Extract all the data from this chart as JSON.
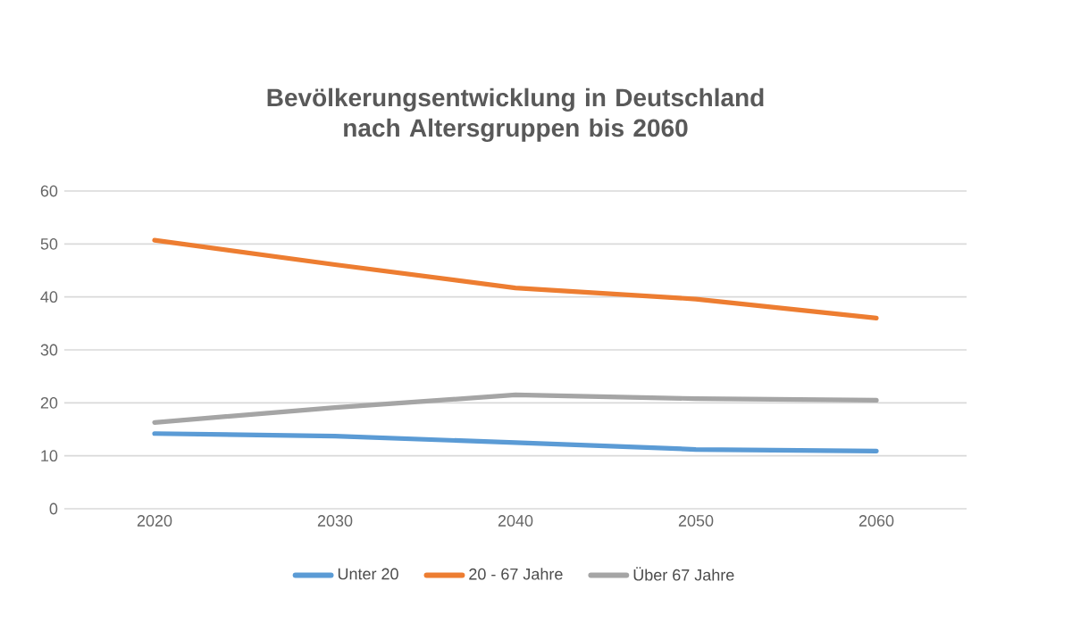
{
  "chart_data": {
    "type": "line",
    "title": "Bevölkerungsentwicklung in Deutschland nach Altersgruppen bis 2060",
    "categories": [
      "2020",
      "2030",
      "2040",
      "2050",
      "2060"
    ],
    "series": [
      {
        "name": "Unter 20",
        "color": "#5b9bd5",
        "values": [
          14.2,
          13.7,
          12.5,
          11.2,
          10.9
        ]
      },
      {
        "name": "20 - 67 Jahre",
        "color": "#ed7d31",
        "values": [
          50.7,
          46.1,
          41.7,
          39.6,
          36.0
        ]
      },
      {
        "name": "Über 67 Jahre",
        "color": "#a5a5a5",
        "values": [
          16.3,
          19.1,
          21.5,
          20.8,
          20.5
        ]
      }
    ],
    "ylim": [
      0,
      60
    ],
    "yticks": [
      0,
      10,
      20,
      30,
      40,
      50,
      60
    ],
    "grid": "y",
    "legend": "bottom",
    "marker": "none",
    "line_style": "solid"
  }
}
